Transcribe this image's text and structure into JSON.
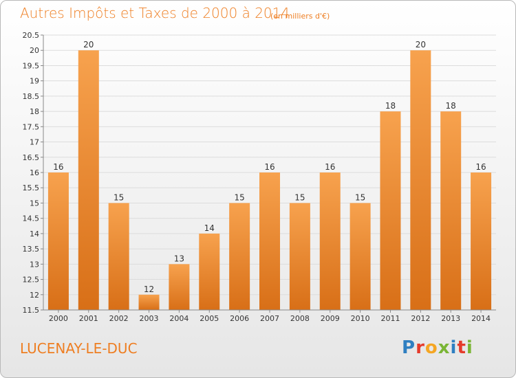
{
  "header": {
    "title": "Autres Impôts et Taxes de 2000 à 2014",
    "subtitle": "(en milliers d'€)"
  },
  "footer": {
    "commune": "LUCENAY-LE-DUC",
    "logo": "Proxiti"
  },
  "colors": {
    "accent": "#ee7e22",
    "bar_light": "#f7a24e",
    "bar_dark": "#d86f17"
  },
  "chart_data": {
    "type": "bar",
    "title": "Autres Impôts et Taxes de 2000 à 2014",
    "subtitle": "(en milliers d'€)",
    "categories": [
      "2000",
      "2001",
      "2002",
      "2003",
      "2004",
      "2005",
      "2006",
      "2007",
      "2008",
      "2009",
      "2010",
      "2011",
      "2012",
      "2013",
      "2014"
    ],
    "values": [
      16,
      20,
      15,
      12,
      13,
      14,
      15,
      16,
      15,
      16,
      15,
      18,
      20,
      18,
      16
    ],
    "ylim": [
      11.5,
      20.5
    ],
    "yticks": [
      11.5,
      12,
      12.5,
      13,
      13.5,
      14,
      14.5,
      15,
      15.5,
      16,
      16.5,
      17,
      17.5,
      18,
      18.5,
      19,
      19.5,
      20,
      20.5
    ],
    "grid": true
  }
}
